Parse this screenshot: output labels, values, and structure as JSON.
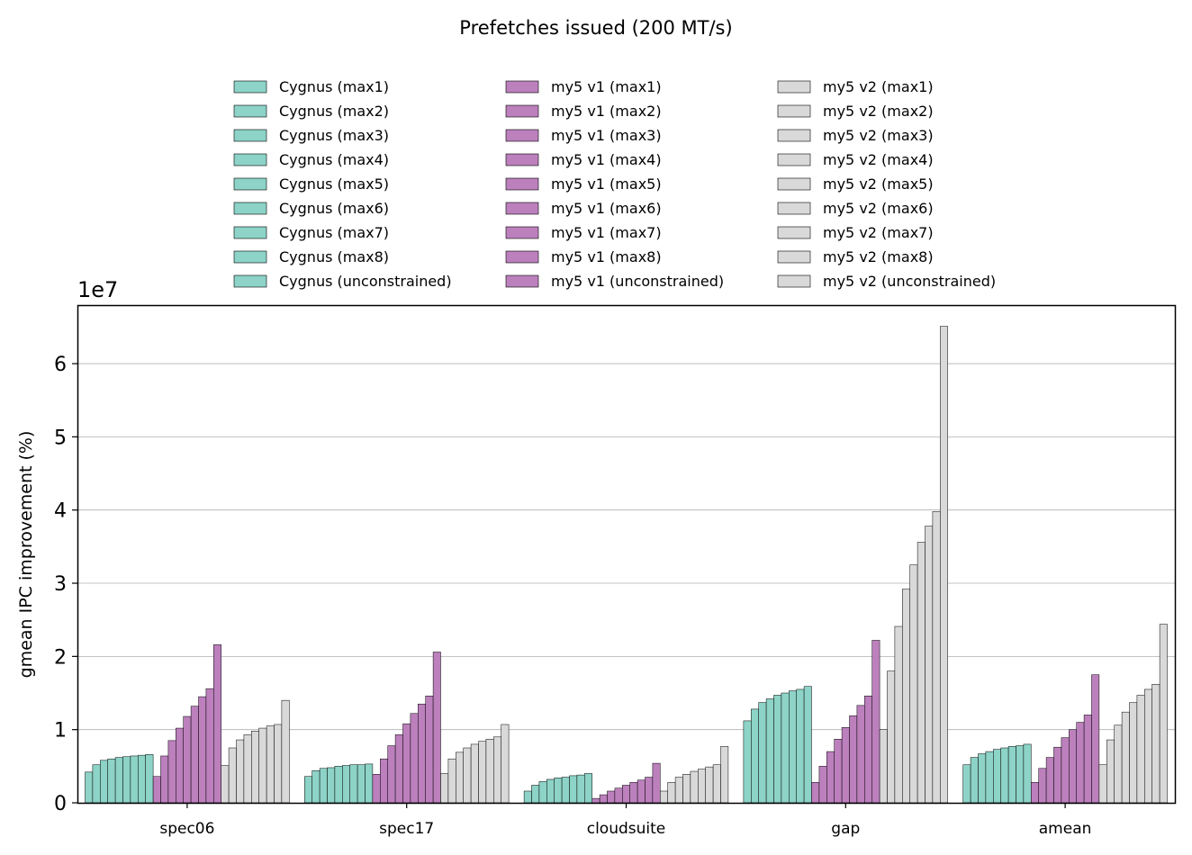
{
  "chart_data": {
    "type": "bar",
    "title": "Prefetches issued (200 MT/s)",
    "ylabel": "gmean IPC improvement (%)",
    "xlabel": "",
    "y_offset_label": "1e7",
    "y_scale": 10000000,
    "ylim": [
      0,
      6.8
    ],
    "yticks": [
      0,
      1,
      2,
      3,
      4,
      5,
      6
    ],
    "grid": "y",
    "legend_position": "top-center",
    "categories": [
      "spec06",
      "spec17",
      "cloudsuite",
      "gap",
      "amean"
    ],
    "series": [
      {
        "name": "Cygnus (max1)",
        "group": "Cygnus",
        "color": "#8dd3c7",
        "values": [
          0.42,
          0.36,
          0.16,
          1.12,
          0.52
        ]
      },
      {
        "name": "Cygnus (max2)",
        "group": "Cygnus",
        "color": "#8dd3c7",
        "values": [
          0.52,
          0.44,
          0.24,
          1.28,
          0.62
        ]
      },
      {
        "name": "Cygnus (max3)",
        "group": "Cygnus",
        "color": "#8dd3c7",
        "values": [
          0.58,
          0.47,
          0.29,
          1.37,
          0.67
        ]
      },
      {
        "name": "Cygnus (max4)",
        "group": "Cygnus",
        "color": "#8dd3c7",
        "values": [
          0.6,
          0.48,
          0.32,
          1.42,
          0.7
        ]
      },
      {
        "name": "Cygnus (max5)",
        "group": "Cygnus",
        "color": "#8dd3c7",
        "values": [
          0.62,
          0.5,
          0.34,
          1.47,
          0.73
        ]
      },
      {
        "name": "Cygnus (max6)",
        "group": "Cygnus",
        "color": "#8dd3c7",
        "values": [
          0.63,
          0.51,
          0.35,
          1.5,
          0.75
        ]
      },
      {
        "name": "Cygnus (max7)",
        "group": "Cygnus",
        "color": "#8dd3c7",
        "values": [
          0.64,
          0.52,
          0.37,
          1.53,
          0.77
        ]
      },
      {
        "name": "Cygnus (max8)",
        "group": "Cygnus",
        "color": "#8dd3c7",
        "values": [
          0.65,
          0.52,
          0.38,
          1.55,
          0.78
        ]
      },
      {
        "name": "Cygnus (unconstrained)",
        "group": "Cygnus",
        "color": "#8dd3c7",
        "values": [
          0.66,
          0.53,
          0.4,
          1.59,
          0.8
        ]
      },
      {
        "name": "my5 v1 (max1)",
        "group": "my5 v1",
        "color": "#bc80bd",
        "values": [
          0.36,
          0.39,
          0.06,
          0.28,
          0.28
        ]
      },
      {
        "name": "my5 v1 (max2)",
        "group": "my5 v1",
        "color": "#bc80bd",
        "values": [
          0.64,
          0.6,
          0.11,
          0.5,
          0.47
        ]
      },
      {
        "name": "my5 v1 (max3)",
        "group": "my5 v1",
        "color": "#bc80bd",
        "values": [
          0.85,
          0.78,
          0.16,
          0.7,
          0.62
        ]
      },
      {
        "name": "my5 v1 (max4)",
        "group": "my5 v1",
        "color": "#bc80bd",
        "values": [
          1.02,
          0.93,
          0.2,
          0.87,
          0.76
        ]
      },
      {
        "name": "my5 v1 (max5)",
        "group": "my5 v1",
        "color": "#bc80bd",
        "values": [
          1.18,
          1.08,
          0.24,
          1.03,
          0.89
        ]
      },
      {
        "name": "my5 v1 (max6)",
        "group": "my5 v1",
        "color": "#bc80bd",
        "values": [
          1.32,
          1.22,
          0.28,
          1.19,
          1.0
        ]
      },
      {
        "name": "my5 v1 (max7)",
        "group": "my5 v1",
        "color": "#bc80bd",
        "values": [
          1.45,
          1.35,
          0.31,
          1.33,
          1.1
        ]
      },
      {
        "name": "my5 v1 (max8)",
        "group": "my5 v1",
        "color": "#bc80bd",
        "values": [
          1.56,
          1.46,
          0.35,
          1.46,
          1.2
        ]
      },
      {
        "name": "my5 v1 (unconstrained)",
        "group": "my5 v1",
        "color": "#bc80bd",
        "values": [
          2.16,
          2.06,
          0.54,
          2.22,
          1.75
        ]
      },
      {
        "name": "my5 v2 (max1)",
        "group": "my5 v2",
        "color": "#d9d9d9",
        "values": [
          0.51,
          0.4,
          0.16,
          1.0,
          0.52
        ]
      },
      {
        "name": "my5 v2 (max2)",
        "group": "my5 v2",
        "color": "#d9d9d9",
        "values": [
          0.75,
          0.6,
          0.28,
          1.8,
          0.86
        ]
      },
      {
        "name": "my5 v2 (max3)",
        "group": "my5 v2",
        "color": "#d9d9d9",
        "values": [
          0.86,
          0.69,
          0.35,
          2.41,
          1.06
        ]
      },
      {
        "name": "my5 v2 (max4)",
        "group": "my5 v2",
        "color": "#d9d9d9",
        "values": [
          0.93,
          0.75,
          0.39,
          2.92,
          1.24
        ]
      },
      {
        "name": "my5 v2 (max5)",
        "group": "my5 v2",
        "color": "#d9d9d9",
        "values": [
          0.98,
          0.8,
          0.43,
          3.25,
          1.37
        ]
      },
      {
        "name": "my5 v2 (max6)",
        "group": "my5 v2",
        "color": "#d9d9d9",
        "values": [
          1.02,
          0.84,
          0.46,
          3.56,
          1.47
        ]
      },
      {
        "name": "my5 v2 (max7)",
        "group": "my5 v2",
        "color": "#d9d9d9",
        "values": [
          1.05,
          0.87,
          0.49,
          3.78,
          1.55
        ]
      },
      {
        "name": "my5 v2 (max8)",
        "group": "my5 v2",
        "color": "#d9d9d9",
        "values": [
          1.07,
          0.9,
          0.52,
          3.98,
          1.62
        ]
      },
      {
        "name": "my5 v2 (unconstrained)",
        "group": "my5 v2",
        "color": "#d9d9d9",
        "values": [
          1.4,
          1.07,
          0.77,
          6.51,
          2.44
        ]
      }
    ]
  }
}
